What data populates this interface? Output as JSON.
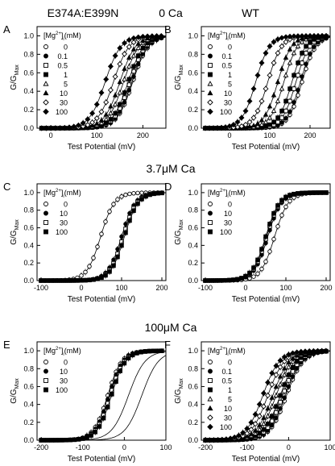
{
  "figure": {
    "col_headers": [
      "E374A:E399N",
      "WT"
    ],
    "row_headers": [
      "0 Ca",
      "3.7μM Ca",
      "100μM Ca"
    ]
  },
  "chart_data": [
    {
      "panel": "A",
      "type": "scatter",
      "xlabel": "Test Potential (mV)",
      "ylabel_main": "G/G",
      "ylabel_sub": "Max",
      "xlim": [
        -30,
        250
      ],
      "ylim": [
        0,
        1.1
      ],
      "xticks": [
        0,
        100,
        200
      ],
      "yticks": [
        0.0,
        0.2,
        0.4,
        0.6,
        0.8,
        1.0
      ],
      "legend_title_pre": "[Mg",
      "legend_title_sup": "2+",
      "legend_title_post": "]",
      "legend_title_sub": "i",
      "legend_title_unit": "(mM)",
      "series": [
        {
          "name": "0",
          "marker": "circle-open",
          "v_half": 178,
          "slope": 17
        },
        {
          "name": "0.1",
          "marker": "circle-filled",
          "v_half": 176,
          "slope": 17
        },
        {
          "name": "0.5",
          "marker": "square-open",
          "v_half": 172,
          "slope": 17
        },
        {
          "name": "1",
          "marker": "square-filled",
          "v_half": 168,
          "slope": 17
        },
        {
          "name": "5",
          "marker": "triangle-open",
          "v_half": 158,
          "slope": 17
        },
        {
          "name": "10",
          "marker": "triangle-filled",
          "v_half": 150,
          "slope": 17
        },
        {
          "name": "30",
          "marker": "diamond-open",
          "v_half": 136,
          "slope": 17
        },
        {
          "name": "100",
          "marker": "diamond-filled",
          "v_half": 118,
          "slope": 17
        }
      ],
      "x_start": -20,
      "x_step": 10
    },
    {
      "panel": "B",
      "type": "scatter",
      "xlabel": "Test Potential (mV)",
      "ylabel_main": "G/G",
      "ylabel_sub": "Max",
      "xlim": [
        -70,
        250
      ],
      "ylim": [
        0,
        1.1
      ],
      "xticks": [
        0,
        100,
        200
      ],
      "yticks": [
        0.0,
        0.2,
        0.4,
        0.6,
        0.8,
        1.0
      ],
      "legend_title_pre": "[Mg",
      "legend_title_sup": "2+",
      "legend_title_post": "]",
      "legend_title_sub": "i",
      "legend_title_unit": "(mM)",
      "series": [
        {
          "name": "0",
          "marker": "circle-open",
          "v_half": 180,
          "slope": 17
        },
        {
          "name": "0.1",
          "marker": "circle-filled",
          "v_half": 176,
          "slope": 17
        },
        {
          "name": "0.5",
          "marker": "square-open",
          "v_half": 165,
          "slope": 17
        },
        {
          "name": "1",
          "marker": "square-filled",
          "v_half": 155,
          "slope": 17
        },
        {
          "name": "5",
          "marker": "triangle-open",
          "v_half": 135,
          "slope": 17
        },
        {
          "name": "10",
          "marker": "triangle-filled",
          "v_half": 120,
          "slope": 17
        },
        {
          "name": "30",
          "marker": "diamond-open",
          "v_half": 95,
          "slope": 17
        },
        {
          "name": "100",
          "marker": "diamond-filled",
          "v_half": 65,
          "slope": 17
        }
      ],
      "x_start": -60,
      "x_step": 10
    },
    {
      "panel": "C",
      "type": "scatter",
      "xlabel": "Test Potential (mV)",
      "ylabel_main": "G/G",
      "ylabel_sub": "Max",
      "xlim": [
        -110,
        210
      ],
      "ylim": [
        0,
        1.1
      ],
      "xticks": [
        -100,
        0,
        100,
        200
      ],
      "yticks": [
        0.0,
        0.2,
        0.4,
        0.6,
        0.8,
        1.0
      ],
      "legend_title_pre": "[Mg",
      "legend_title_sup": "2+",
      "legend_title_post": "]",
      "legend_title_sub": "i",
      "legend_title_unit": "(mM)",
      "series": [
        {
          "name": "0",
          "marker": "circle-open",
          "v_half": 48,
          "slope": 17
        },
        {
          "name": "10",
          "marker": "circle-filled",
          "v_half": 100,
          "slope": 17
        },
        {
          "name": "30",
          "marker": "square-open",
          "v_half": 104,
          "slope": 17
        },
        {
          "name": "100",
          "marker": "square-filled",
          "v_half": 107,
          "slope": 17
        }
      ],
      "x_start": -100,
      "x_step": 10
    },
    {
      "panel": "D",
      "type": "scatter",
      "xlabel": "Test Potential (mV)",
      "ylabel_main": "G/G",
      "ylabel_sub": "Max",
      "xlim": [
        -110,
        210
      ],
      "ylim": [
        0,
        1.1
      ],
      "xticks": [
        -100,
        0,
        100,
        200
      ],
      "yticks": [
        0.0,
        0.2,
        0.4,
        0.6,
        0.8,
        1.0
      ],
      "legend_title_pre": "[Mg",
      "legend_title_sup": "2+",
      "legend_title_post": "]",
      "legend_title_sub": "i",
      "legend_title_unit": "(mM)",
      "series": [
        {
          "name": "0",
          "marker": "circle-open",
          "v_half": 72,
          "slope": 17
        },
        {
          "name": "10",
          "marker": "circle-filled",
          "v_half": 55,
          "slope": 17
        },
        {
          "name": "30",
          "marker": "square-open",
          "v_half": 52,
          "slope": 17
        },
        {
          "name": "100",
          "marker": "square-filled",
          "v_half": 50,
          "slope": 17
        }
      ],
      "x_start": -100,
      "x_step": 10
    },
    {
      "panel": "E",
      "type": "scatter",
      "xlabel": "Test Potential (mV)",
      "ylabel_main": "G/G",
      "ylabel_sub": "Max",
      "xlim": [
        -210,
        100
      ],
      "ylim": [
        0,
        1.1
      ],
      "xticks": [
        -200,
        -100,
        0,
        100
      ],
      "yticks": [
        0.0,
        0.2,
        0.4,
        0.6,
        0.8,
        1.0
      ],
      "legend_title_pre": "[Mg",
      "legend_title_sup": "2+",
      "legend_title_post": "]",
      "legend_title_sub": "i",
      "legend_title_unit": "(mM)",
      "series": [
        {
          "name": "0",
          "marker": "circle-open",
          "v_half": -40,
          "slope": 17
        },
        {
          "name": "10",
          "marker": "circle-filled",
          "v_half": -37,
          "slope": 17
        },
        {
          "name": "30",
          "marker": "square-open",
          "v_half": -34,
          "slope": 17
        },
        {
          "name": "100",
          "marker": "square-filled",
          "v_half": -31,
          "slope": 17
        }
      ],
      "extra_curves": [
        {
          "v_half": 10,
          "slope": 20
        },
        {
          "v_half": 42,
          "slope": 20
        }
      ],
      "x_start": -200,
      "x_step": 10
    },
    {
      "panel": "F",
      "type": "scatter",
      "xlabel": "Test Potential (mV)",
      "ylabel_main": "G/G",
      "ylabel_sub": "Max",
      "xlim": [
        -210,
        100
      ],
      "ylim": [
        0,
        1.1
      ],
      "xticks": [
        -200,
        -100,
        0,
        100
      ],
      "yticks": [
        0.0,
        0.2,
        0.4,
        0.6,
        0.8,
        1.0
      ],
      "legend_title_pre": "[Mg",
      "legend_title_sup": "2+",
      "legend_title_post": "]",
      "legend_title_sub": "i",
      "legend_title_unit": "(mM)",
      "series": [
        {
          "name": "0",
          "marker": "circle-open",
          "v_half": -5,
          "slope": 20
        },
        {
          "name": "0.1",
          "marker": "circle-filled",
          "v_half": -8,
          "slope": 20
        },
        {
          "name": "0.5",
          "marker": "square-open",
          "v_half": -14,
          "slope": 20
        },
        {
          "name": "1",
          "marker": "square-filled",
          "v_half": -20,
          "slope": 20
        },
        {
          "name": "5",
          "marker": "triangle-open",
          "v_half": -30,
          "slope": 20
        },
        {
          "name": "10",
          "marker": "triangle-filled",
          "v_half": -38,
          "slope": 20
        },
        {
          "name": "30",
          "marker": "diamond-open",
          "v_half": -50,
          "slope": 20
        },
        {
          "name": "100",
          "marker": "diamond-filled",
          "v_half": -62,
          "slope": 20
        }
      ],
      "x_start": -200,
      "x_step": 10
    }
  ]
}
